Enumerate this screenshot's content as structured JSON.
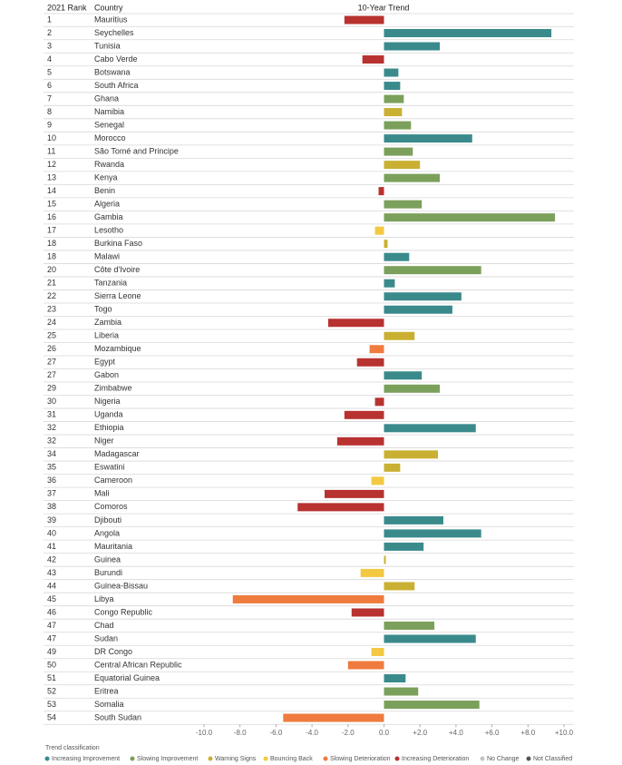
{
  "chart_data": {
    "type": "bar",
    "orientation": "horizontal",
    "rank_header": "2021 Rank",
    "category_header": "Country",
    "value_header": "10-Year Trend",
    "ranks": [
      1,
      2,
      3,
      4,
      5,
      6,
      7,
      8,
      9,
      10,
      11,
      12,
      13,
      14,
      15,
      16,
      17,
      18,
      18,
      20,
      21,
      22,
      23,
      24,
      25,
      26,
      27,
      27,
      29,
      30,
      31,
      32,
      32,
      34,
      35,
      36,
      37,
      38,
      39,
      40,
      41,
      42,
      43,
      44,
      45,
      46,
      47,
      47,
      49,
      50,
      51,
      52,
      53,
      54
    ],
    "categories": [
      "Mauritius",
      "Seychelles",
      "Tunisia",
      "Cabo Verde",
      "Botswana",
      "South Africa",
      "Ghana",
      "Namibia",
      "Senegal",
      "Morocco",
      "São Tomé and Principe",
      "Rwanda",
      "Kenya",
      "Benin",
      "Algeria",
      "Gambia",
      "Lesotho",
      "Burkina Faso",
      "Malawi",
      "Côte d'Ivoire",
      "Tanzania",
      "Sierra Leone",
      "Togo",
      "Zambia",
      "Liberia",
      "Mozambique",
      "Egypt",
      "Gabon",
      "Zimbabwe",
      "Nigeria",
      "Uganda",
      "Ethiopia",
      "Niger",
      "Madagascar",
      "Eswatini",
      "Cameroon",
      "Mali",
      "Comoros",
      "Djibouti",
      "Angola",
      "Mauritania",
      "Guinea",
      "Burundi",
      "Guinea-Bissau",
      "Libya",
      "Congo Republic",
      "Chad",
      "Sudan",
      "DR Congo",
      "Central African Republic",
      "Equatorial Guinea",
      "Eritrea",
      "Somalia",
      "South Sudan"
    ],
    "values": [
      -2.2,
      9.3,
      3.1,
      -1.2,
      0.8,
      0.9,
      1.1,
      1.0,
      1.5,
      4.9,
      1.6,
      2.0,
      3.1,
      -0.3,
      2.1,
      9.5,
      -0.5,
      0.2,
      1.4,
      5.4,
      0.6,
      4.3,
      3.8,
      -3.1,
      1.7,
      -0.8,
      -1.5,
      2.1,
      3.1,
      -0.5,
      -2.2,
      5.1,
      -2.6,
      3.0,
      0.9,
      -0.7,
      -3.3,
      -4.8,
      3.3,
      5.4,
      2.2,
      0.1,
      -1.3,
      1.7,
      -8.4,
      -1.8,
      2.8,
      5.1,
      -0.7,
      -2.0,
      1.2,
      1.9,
      5.3,
      -5.6
    ],
    "colors": [
      "#b83230",
      "#3a8a8c",
      "#3a8a8c",
      "#b83230",
      "#3a8a8c",
      "#3a8a8c",
      "#7ba05b",
      "#c9b032",
      "#7ba05b",
      "#3a8a8c",
      "#7ba05b",
      "#c9b032",
      "#7ba05b",
      "#b83230",
      "#7ba05b",
      "#7ba05b",
      "#f3c842",
      "#c9b032",
      "#3a8a8c",
      "#7ba05b",
      "#3a8a8c",
      "#3a8a8c",
      "#3a8a8c",
      "#b83230",
      "#c9b032",
      "#ef7b3e",
      "#b83230",
      "#3a8a8c",
      "#7ba05b",
      "#b83230",
      "#b83230",
      "#3a8a8c",
      "#b83230",
      "#c9b032",
      "#c9b032",
      "#f3c842",
      "#b83230",
      "#b83230",
      "#3a8a8c",
      "#3a8a8c",
      "#3a8a8c",
      "#c9b032",
      "#f3c842",
      "#c9b032",
      "#ef7b3e",
      "#b83230",
      "#7ba05b",
      "#3a8a8c",
      "#f3c842",
      "#ef7b3e",
      "#3a8a8c",
      "#7ba05b",
      "#7ba05b",
      "#ef7b3e"
    ],
    "xlim": [
      -10,
      10
    ],
    "xticks": [
      {
        "value": -10,
        "label": "-10.0"
      },
      {
        "value": -8,
        "label": "-8.0"
      },
      {
        "value": -6,
        "label": "-6.0"
      },
      {
        "value": -4,
        "label": "-4.0"
      },
      {
        "value": -2,
        "label": "-2.0"
      },
      {
        "value": 0,
        "label": "0.0"
      },
      {
        "value": 2,
        "label": "+2.0"
      },
      {
        "value": 4,
        "label": "+4.0"
      },
      {
        "value": 6,
        "label": "+6.0"
      },
      {
        "value": 8,
        "label": "+8.0"
      },
      {
        "value": 10,
        "label": "+10.0"
      }
    ],
    "legend": {
      "title": "Trend classification",
      "items": [
        {
          "name": "Increasing Improvement",
          "color": "#3a8a8c"
        },
        {
          "name": "Slowing Improvement",
          "color": "#7ba05b"
        },
        {
          "name": "Warning Signs",
          "color": "#c9b032"
        },
        {
          "name": "Bouncing Back",
          "color": "#f3c842"
        },
        {
          "name": "Slowing Deterioration",
          "color": "#ef7b3e"
        },
        {
          "name": "Increasing Deterioration",
          "color": "#b83230"
        },
        {
          "name": "No Change",
          "color": "#c4c4c4"
        },
        {
          "name": "Not Classified",
          "color": "#555555"
        }
      ]
    }
  }
}
